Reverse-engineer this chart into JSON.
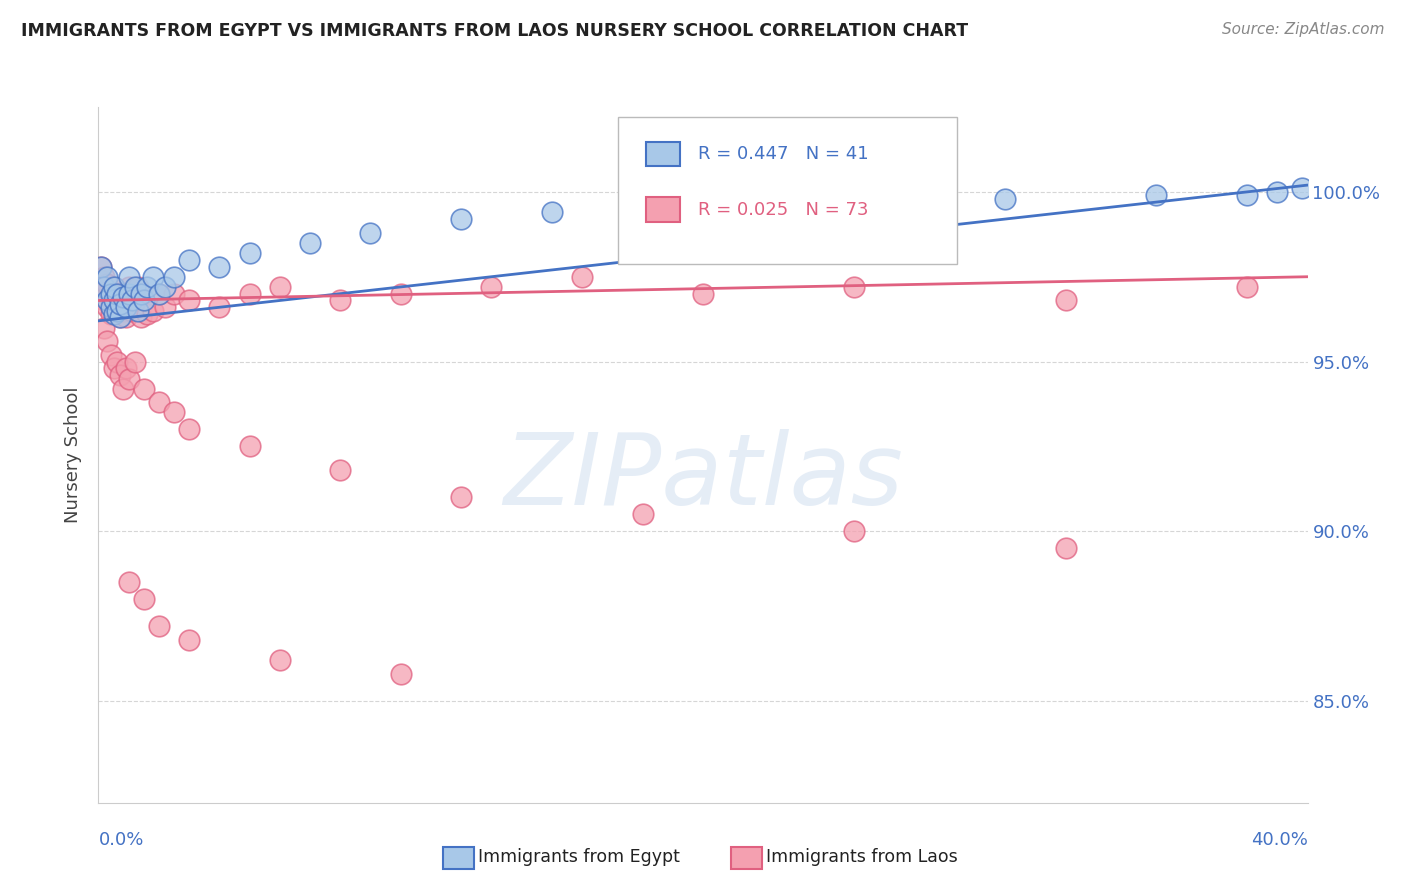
{
  "title": "IMMIGRANTS FROM EGYPT VS IMMIGRANTS FROM LAOS NURSERY SCHOOL CORRELATION CHART",
  "source": "Source: ZipAtlas.com",
  "ylabel": "Nursery School",
  "y_tick_values": [
    0.85,
    0.9,
    0.95,
    1.0
  ],
  "y_tick_labels": [
    "85.0%",
    "90.0%",
    "95.0%",
    "100.0%"
  ],
  "x_left_label": "0.0%",
  "x_right_label": "40.0%",
  "legend_egypt_text": "R = 0.447   N = 41",
  "legend_laos_text": "R = 0.025   N = 73",
  "legend_label_egypt": "Immigrants from Egypt",
  "legend_label_laos": "Immigrants from Laos",
  "color_egypt_fill": "#A8C8E8",
  "color_egypt_edge": "#4472C4",
  "color_egypt_line": "#4472C4",
  "color_laos_fill": "#F4A0B0",
  "color_laos_edge": "#E06080",
  "color_laos_line": "#E06080",
  "background_color": "#FFFFFF",
  "xlim": [
    0.0,
    0.4
  ],
  "ylim": [
    0.82,
    1.025
  ],
  "watermark": "ZIPatlas",
  "egypt_trend_x0": 0.0,
  "egypt_trend_y0": 0.962,
  "egypt_trend_x1": 0.4,
  "egypt_trend_y1": 1.002,
  "laos_trend_x0": 0.0,
  "laos_trend_y0": 0.968,
  "laos_trend_x1": 0.4,
  "laos_trend_y1": 0.975,
  "egypt_x": [
    0.001,
    0.002,
    0.003,
    0.003,
    0.004,
    0.004,
    0.005,
    0.005,
    0.005,
    0.006,
    0.006,
    0.007,
    0.007,
    0.008,
    0.009,
    0.01,
    0.01,
    0.011,
    0.012,
    0.013,
    0.014,
    0.015,
    0.016,
    0.018,
    0.02,
    0.022,
    0.025,
    0.03,
    0.04,
    0.05,
    0.07,
    0.09,
    0.12,
    0.15,
    0.2,
    0.25,
    0.3,
    0.35,
    0.38,
    0.39,
    0.398
  ],
  "egypt_y": [
    0.978,
    0.972,
    0.968,
    0.975,
    0.97,
    0.966,
    0.964,
    0.968,
    0.972,
    0.965,
    0.97,
    0.963,
    0.967,
    0.969,
    0.966,
    0.97,
    0.975,
    0.968,
    0.972,
    0.965,
    0.97,
    0.968,
    0.972,
    0.975,
    0.97,
    0.972,
    0.975,
    0.98,
    0.978,
    0.982,
    0.985,
    0.988,
    0.992,
    0.994,
    0.996,
    0.997,
    0.998,
    0.999,
    0.999,
    1.0,
    1.001
  ],
  "laos_x": [
    0.001,
    0.001,
    0.002,
    0.002,
    0.002,
    0.003,
    0.003,
    0.003,
    0.004,
    0.004,
    0.004,
    0.005,
    0.005,
    0.005,
    0.006,
    0.006,
    0.006,
    0.007,
    0.007,
    0.008,
    0.008,
    0.009,
    0.009,
    0.01,
    0.01,
    0.011,
    0.012,
    0.013,
    0.014,
    0.015,
    0.016,
    0.018,
    0.02,
    0.022,
    0.025,
    0.03,
    0.04,
    0.05,
    0.06,
    0.08,
    0.1,
    0.13,
    0.16,
    0.2,
    0.25,
    0.32,
    0.38,
    0.002,
    0.003,
    0.004,
    0.005,
    0.006,
    0.007,
    0.008,
    0.009,
    0.01,
    0.012,
    0.015,
    0.02,
    0.025,
    0.03,
    0.05,
    0.08,
    0.12,
    0.18,
    0.25,
    0.32,
    0.01,
    0.015,
    0.02,
    0.03,
    0.06,
    0.1
  ],
  "laos_y": [
    0.978,
    0.974,
    0.972,
    0.968,
    0.975,
    0.97,
    0.966,
    0.973,
    0.968,
    0.964,
    0.97,
    0.966,
    0.972,
    0.968,
    0.965,
    0.97,
    0.966,
    0.963,
    0.968,
    0.965,
    0.97,
    0.968,
    0.963,
    0.968,
    0.972,
    0.965,
    0.968,
    0.972,
    0.963,
    0.968,
    0.964,
    0.965,
    0.97,
    0.966,
    0.97,
    0.968,
    0.966,
    0.97,
    0.972,
    0.968,
    0.97,
    0.972,
    0.975,
    0.97,
    0.972,
    0.968,
    0.972,
    0.96,
    0.956,
    0.952,
    0.948,
    0.95,
    0.946,
    0.942,
    0.948,
    0.945,
    0.95,
    0.942,
    0.938,
    0.935,
    0.93,
    0.925,
    0.918,
    0.91,
    0.905,
    0.9,
    0.895,
    0.885,
    0.88,
    0.872,
    0.868,
    0.862,
    0.858
  ]
}
